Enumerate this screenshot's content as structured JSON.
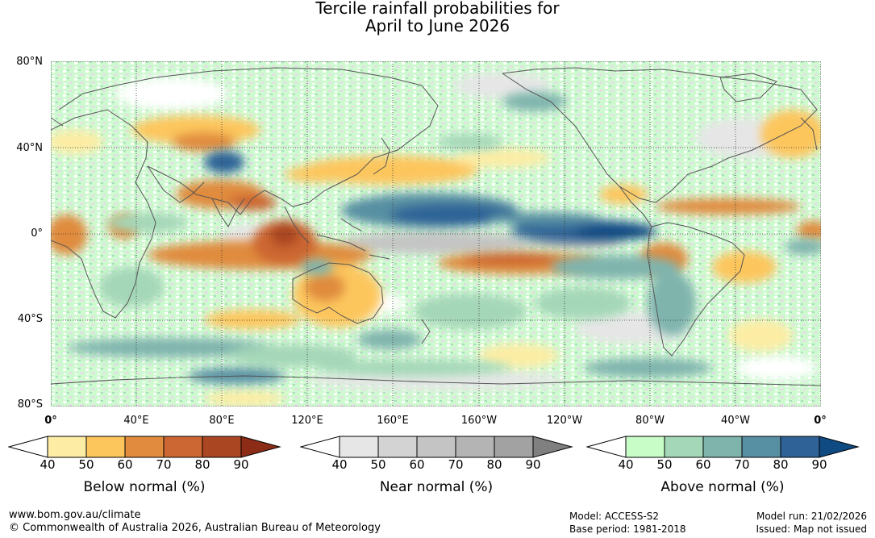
{
  "title": {
    "line1": "Tercile rainfall probabilities for",
    "line2": "April to June 2026"
  },
  "axes": {
    "lat_labels": [
      "80°N",
      "40°N",
      "0°",
      "40°S",
      "80°S"
    ],
    "lon_labels": [
      "0°",
      "40°E",
      "80°E",
      "120°E",
      "160°E",
      "160°W",
      "120°W",
      "80°W",
      "40°W",
      "0°"
    ]
  },
  "legends": [
    {
      "title": "Below normal (%)",
      "ticks": [
        "40",
        "50",
        "60",
        "70",
        "80",
        "90"
      ],
      "colors": [
        "#ffffff",
        "#fdeda4",
        "#fdc65d",
        "#e08b3d",
        "#cc6632",
        "#ab4623",
        "#8c2c17"
      ]
    },
    {
      "title": "Near normal (%)",
      "ticks": [
        "40",
        "50",
        "60",
        "70",
        "80",
        "90"
      ],
      "colors": [
        "#ffffff",
        "#e6e6e6",
        "#d3d3d3",
        "#c4c4c4",
        "#b4b4b4",
        "#a2a2a2",
        "#808080"
      ]
    },
    {
      "title": "Above normal (%)",
      "ticks": [
        "40",
        "50",
        "60",
        "70",
        "80",
        "90"
      ],
      "colors": [
        "#ffffff",
        "#c8fdc8",
        "#a4d7b8",
        "#7fb4ad",
        "#5890a3",
        "#2f6397",
        "#0f4a83"
      ]
    }
  ],
  "footer": {
    "website": "www.bom.gov.au/climate",
    "copyright": "© Commonwealth of Australia 2026, Australian Bureau of Meteorology",
    "model": "Model: ACCESS-S2",
    "base_period": "Base period: 1981-2018",
    "model_run": "Model run: 21/02/2026",
    "issued": "Issued: Map not issued"
  }
}
